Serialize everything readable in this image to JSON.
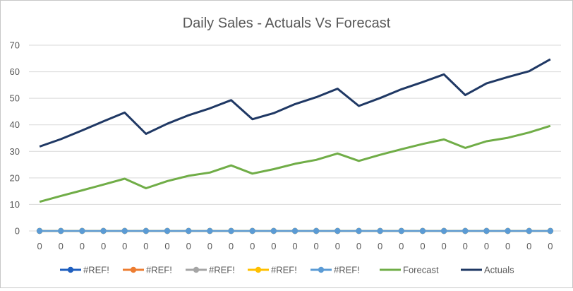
{
  "chart_data": {
    "type": "line",
    "title": "Daily Sales - Actuals Vs Forecast",
    "xlabel": "",
    "ylabel": "",
    "ylim": [
      0,
      70
    ],
    "yticks": [
      0,
      10,
      20,
      30,
      40,
      50,
      60,
      70
    ],
    "categories": [
      "0",
      "0",
      "0",
      "0",
      "0",
      "0",
      "0",
      "0",
      "0",
      "0",
      "0",
      "0",
      "0",
      "0",
      "0",
      "0",
      "0",
      "0",
      "0",
      "0",
      "0",
      "0",
      "0",
      "0",
      "0"
    ],
    "grid": true,
    "legend_position": "bottom",
    "series": [
      {
        "name": "#REF!",
        "color": "#1f5fbf",
        "markers": true,
        "values": [
          0,
          0,
          0,
          0,
          0,
          0,
          0,
          0,
          0,
          0,
          0,
          0,
          0,
          0,
          0,
          0,
          0,
          0,
          0,
          0,
          0,
          0,
          0,
          0,
          0
        ]
      },
      {
        "name": "#REF!",
        "color": "#ed7d31",
        "markers": true,
        "values": [
          0,
          0,
          0,
          0,
          0,
          0,
          0,
          0,
          0,
          0,
          0,
          0,
          0,
          0,
          0,
          0,
          0,
          0,
          0,
          0,
          0,
          0,
          0,
          0,
          0
        ]
      },
      {
        "name": "#REF!",
        "color": "#a5a5a5",
        "markers": true,
        "values": [
          0,
          0,
          0,
          0,
          0,
          0,
          0,
          0,
          0,
          0,
          0,
          0,
          0,
          0,
          0,
          0,
          0,
          0,
          0,
          0,
          0,
          0,
          0,
          0,
          0
        ]
      },
      {
        "name": "#REF!",
        "color": "#ffc000",
        "markers": true,
        "values": [
          0,
          0,
          0,
          0,
          0,
          0,
          0,
          0,
          0,
          0,
          0,
          0,
          0,
          0,
          0,
          0,
          0,
          0,
          0,
          0,
          0,
          0,
          0,
          0,
          0
        ]
      },
      {
        "name": "#REF!",
        "color": "#5b9bd5",
        "markers": true,
        "values": [
          0,
          0,
          0,
          0,
          0,
          0,
          0,
          0,
          0,
          0,
          0,
          0,
          0,
          0,
          0,
          0,
          0,
          0,
          0,
          0,
          0,
          0,
          0,
          0,
          0
        ]
      },
      {
        "name": "Forecast",
        "color": "#70ad47",
        "markers": false,
        "values": [
          11,
          13.2,
          15.3,
          17.5,
          19.7,
          16.1,
          18.8,
          20.8,
          22,
          24.7,
          21.6,
          23.3,
          25.3,
          26.8,
          29.2,
          26.4,
          28.7,
          30.8,
          32.8,
          34.5,
          31.3,
          33.8,
          35.1,
          37.1,
          39.6
        ]
      },
      {
        "name": "Actuals",
        "color": "#1f3864",
        "markers": false,
        "values": [
          31.8,
          34.6,
          37.9,
          41.3,
          44.6,
          36.6,
          40.4,
          43.6,
          46.2,
          49.3,
          42.1,
          44.4,
          47.8,
          50.4,
          53.6,
          47.1,
          50.1,
          53.4,
          56.1,
          59,
          51.2,
          55.6,
          58,
          60.2,
          64.7
        ]
      }
    ]
  }
}
